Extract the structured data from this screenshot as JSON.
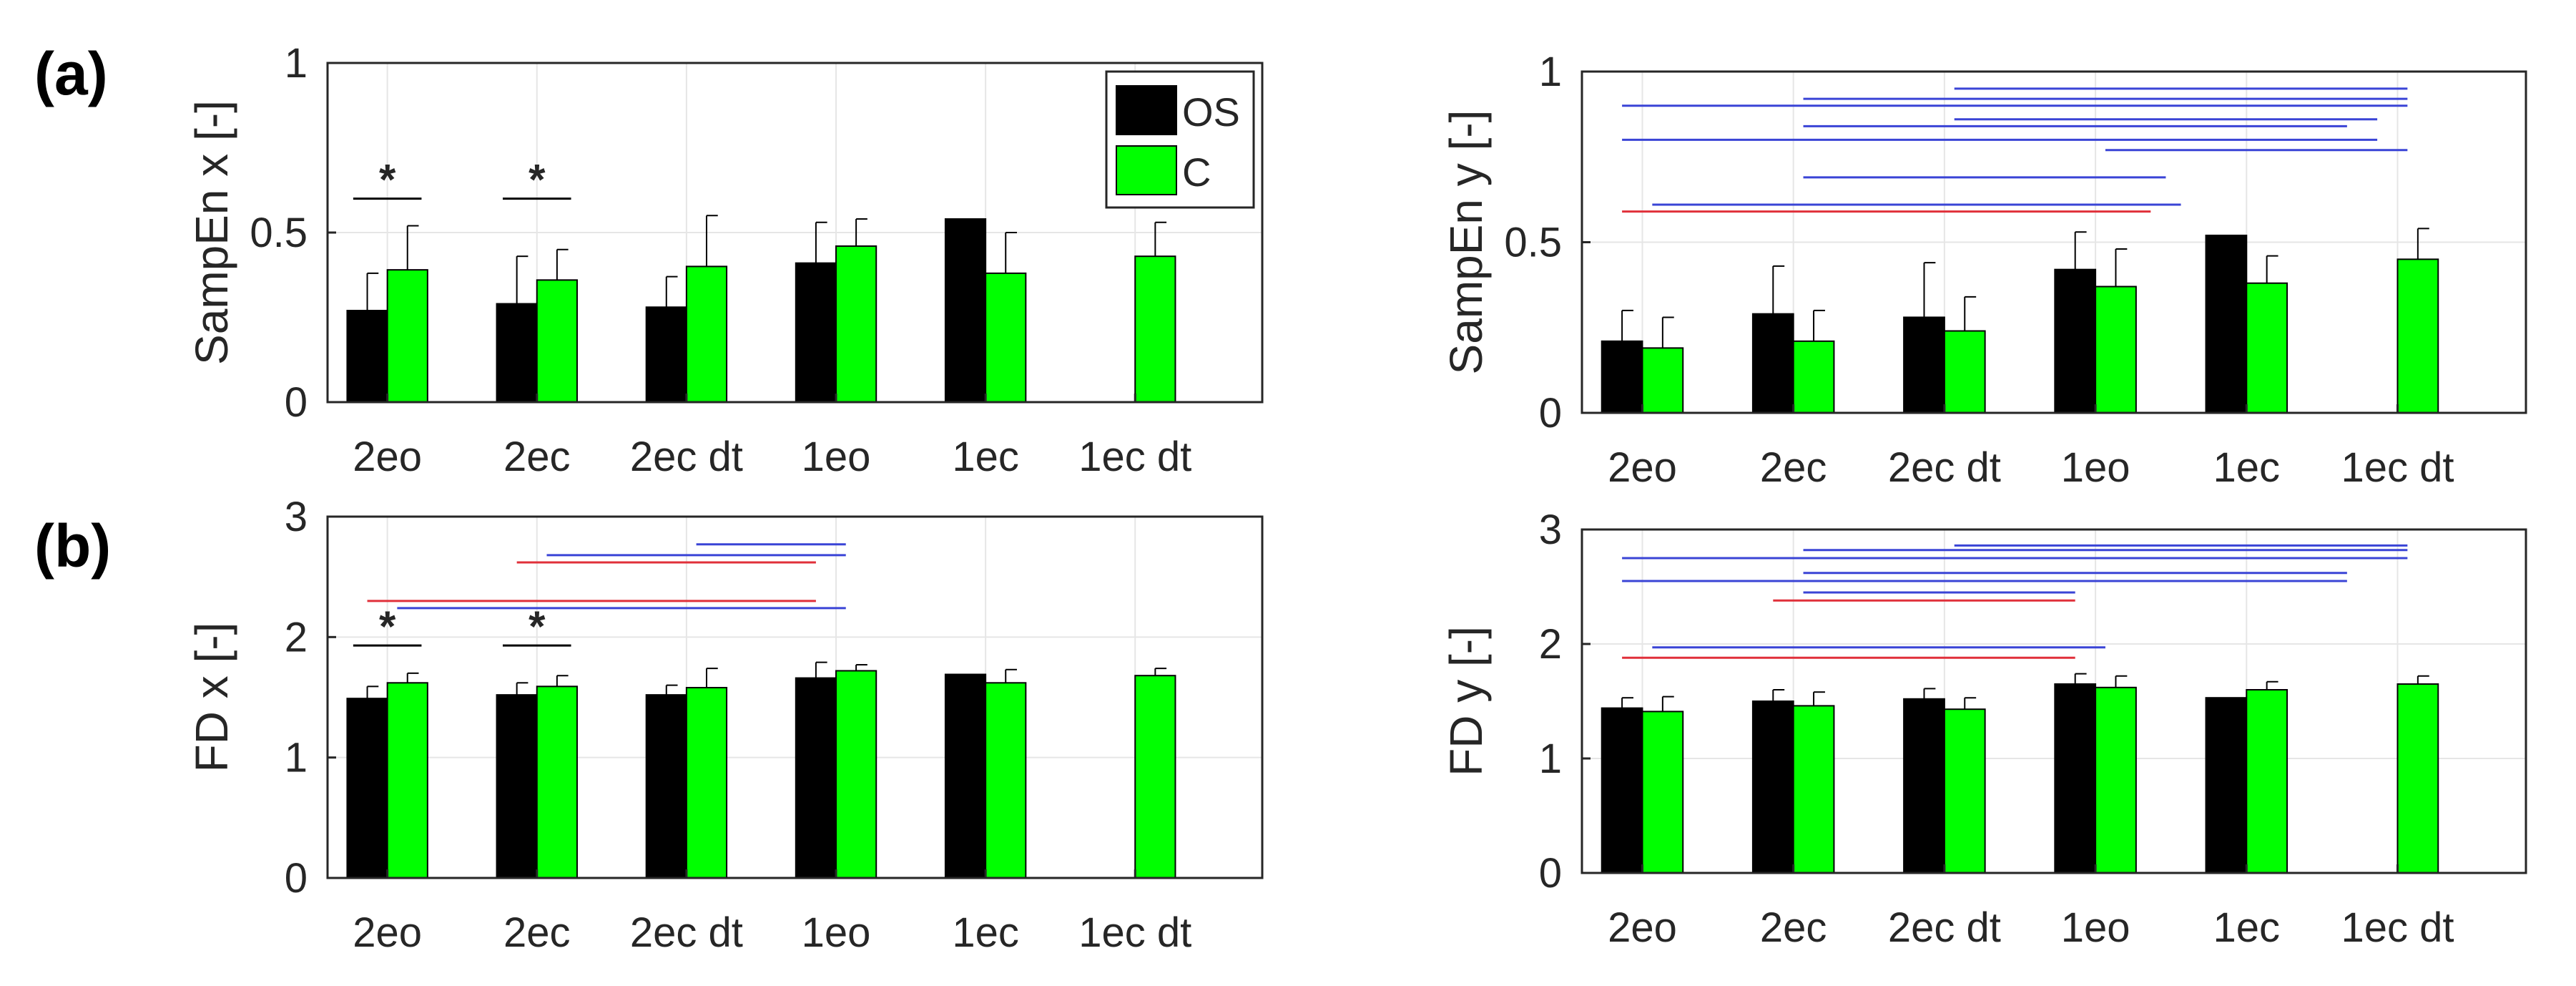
{
  "colors": {
    "os": "#000000",
    "c": "#00ff00",
    "blue_line": "#3a44d6",
    "red_line": "#e0303a",
    "grid": "#e6e6e6",
    "axis": "#262626"
  },
  "legend": {
    "os_label": "OS",
    "c_label": "C"
  },
  "panel_labels": {
    "a": "(a)",
    "b": "(b)"
  },
  "chart_data": [
    {
      "id": "sampen-x",
      "type": "bar",
      "ylabel": "SampEn x [-]",
      "ylim": [
        0,
        1
      ],
      "yticks": [
        0,
        0.5,
        1
      ],
      "ytick_labels": [
        "0",
        "0.5",
        "1"
      ],
      "categories": [
        "2eo",
        "2ec",
        "2ec dt",
        "1eo",
        "1ec",
        "1ec dt"
      ],
      "series": [
        {
          "name": "OS",
          "values": [
            0.27,
            0.29,
            0.28,
            0.41,
            0.54,
            null
          ],
          "errors": [
            0.11,
            0.14,
            0.09,
            0.12,
            0,
            null
          ]
        },
        {
          "name": "C",
          "values": [
            0.39,
            0.36,
            0.4,
            0.46,
            0.38,
            0.43
          ],
          "errors": [
            0.13,
            0.09,
            0.15,
            0.08,
            0.12,
            0.1
          ]
        }
      ],
      "legend": true,
      "stars": [
        {
          "category": 0,
          "label": "*",
          "y": 0.6
        },
        {
          "category": 1,
          "label": "*",
          "y": 0.6
        }
      ],
      "sig_lines": []
    },
    {
      "id": "sampen-y",
      "type": "bar",
      "ylabel": "SampEn y [-]",
      "ylim": [
        0,
        1
      ],
      "yticks": [
        0,
        0.5,
        1
      ],
      "ytick_labels": [
        "0",
        "0.5",
        "1"
      ],
      "categories": [
        "2eo",
        "2ec",
        "2ec dt",
        "1eo",
        "1ec",
        "1ec dt"
      ],
      "series": [
        {
          "name": "OS",
          "values": [
            0.21,
            0.29,
            0.28,
            0.42,
            0.52,
            null
          ],
          "errors": [
            0.09,
            0.14,
            0.16,
            0.11,
            0,
            null
          ]
        },
        {
          "name": "C",
          "values": [
            0.19,
            0.21,
            0.24,
            0.37,
            0.38,
            0.45
          ],
          "errors": [
            0.09,
            0.09,
            0.1,
            0.11,
            0.08,
            0.09
          ]
        }
      ],
      "legend": false,
      "stars": [],
      "sig_lines": [
        {
          "from": 0,
          "to": 3.5,
          "y": 0.59,
          "color": "red"
        },
        {
          "from": 0.2,
          "to": 3.7,
          "y": 0.61,
          "color": "blue"
        },
        {
          "from": 1.2,
          "to": 3.6,
          "y": 0.69,
          "color": "blue"
        },
        {
          "from": 0,
          "to": 5.0,
          "y": 0.8,
          "color": "blue"
        },
        {
          "from": 3.2,
          "to": 5.2,
          "y": 0.77,
          "color": "blue"
        },
        {
          "from": 1.2,
          "to": 4.8,
          "y": 0.84,
          "color": "blue"
        },
        {
          "from": 2.2,
          "to": 5.0,
          "y": 0.86,
          "color": "blue"
        },
        {
          "from": 0,
          "to": 5.2,
          "y": 0.9,
          "color": "blue"
        },
        {
          "from": 1.2,
          "to": 5.2,
          "y": 0.92,
          "color": "blue"
        },
        {
          "from": 2.2,
          "to": 5.2,
          "y": 0.95,
          "color": "blue"
        }
      ]
    },
    {
      "id": "fd-x",
      "type": "bar",
      "ylabel": "FD x [-]",
      "ylim": [
        0,
        3
      ],
      "yticks": [
        0,
        1,
        2,
        3
      ],
      "ytick_labels": [
        "0",
        "1",
        "2",
        "3"
      ],
      "categories": [
        "2eo",
        "2ec",
        "2ec dt",
        "1eo",
        "1ec",
        "1ec dt"
      ],
      "series": [
        {
          "name": "OS",
          "values": [
            1.49,
            1.52,
            1.52,
            1.66,
            1.69,
            null
          ],
          "errors": [
            0.1,
            0.1,
            0.08,
            0.13,
            0,
            null
          ]
        },
        {
          "name": "C",
          "values": [
            1.62,
            1.59,
            1.58,
            1.72,
            1.62,
            1.68
          ],
          "errors": [
            0.08,
            0.09,
            0.16,
            0.05,
            0.11,
            0.06
          ]
        }
      ],
      "legend": false,
      "stars": [
        {
          "category": 0,
          "label": "*",
          "y": 1.93
        },
        {
          "category": 1,
          "label": "*",
          "y": 1.93
        }
      ],
      "sig_lines": [
        {
          "from": 0,
          "to": 3.0,
          "y": 2.3,
          "color": "red"
        },
        {
          "from": 0.2,
          "to": 3.2,
          "y": 2.24,
          "color": "blue"
        },
        {
          "from": 1.0,
          "to": 3.0,
          "y": 2.62,
          "color": "red"
        },
        {
          "from": 1.2,
          "to": 3.2,
          "y": 2.68,
          "color": "blue"
        },
        {
          "from": 2.2,
          "to": 3.2,
          "y": 2.77,
          "color": "blue"
        }
      ]
    },
    {
      "id": "fd-y",
      "type": "bar",
      "ylabel": "FD y [-]",
      "ylim": [
        0,
        3
      ],
      "yticks": [
        0,
        1,
        2,
        3
      ],
      "ytick_labels": [
        "0",
        "1",
        "2",
        "3"
      ],
      "categories": [
        "2eo",
        "2ec",
        "2ec dt",
        "1eo",
        "1ec",
        "1ec dt"
      ],
      "series": [
        {
          "name": "OS",
          "values": [
            1.44,
            1.5,
            1.52,
            1.65,
            1.53,
            null
          ],
          "errors": [
            0.09,
            0.1,
            0.09,
            0.09,
            0,
            null
          ]
        },
        {
          "name": "C",
          "values": [
            1.41,
            1.46,
            1.43,
            1.62,
            1.6,
            1.65
          ],
          "errors": [
            0.13,
            0.12,
            0.1,
            0.1,
            0.07,
            0.07
          ]
        }
      ],
      "legend": false,
      "stars": [],
      "sig_lines": [
        {
          "from": 0,
          "to": 3.0,
          "y": 1.88,
          "color": "red"
        },
        {
          "from": 0.2,
          "to": 3.2,
          "y": 1.97,
          "color": "blue"
        },
        {
          "from": 1.0,
          "to": 3.0,
          "y": 2.38,
          "color": "red"
        },
        {
          "from": 1.2,
          "to": 3.0,
          "y": 2.45,
          "color": "blue"
        },
        {
          "from": 0,
          "to": 4.8,
          "y": 2.55,
          "color": "blue"
        },
        {
          "from": 1.2,
          "to": 4.8,
          "y": 2.62,
          "color": "blue"
        },
        {
          "from": 0,
          "to": 5.2,
          "y": 2.75,
          "color": "blue"
        },
        {
          "from": 1.2,
          "to": 5.2,
          "y": 2.82,
          "color": "blue"
        },
        {
          "from": 2.2,
          "to": 5.2,
          "y": 2.86,
          "color": "blue"
        }
      ]
    }
  ]
}
